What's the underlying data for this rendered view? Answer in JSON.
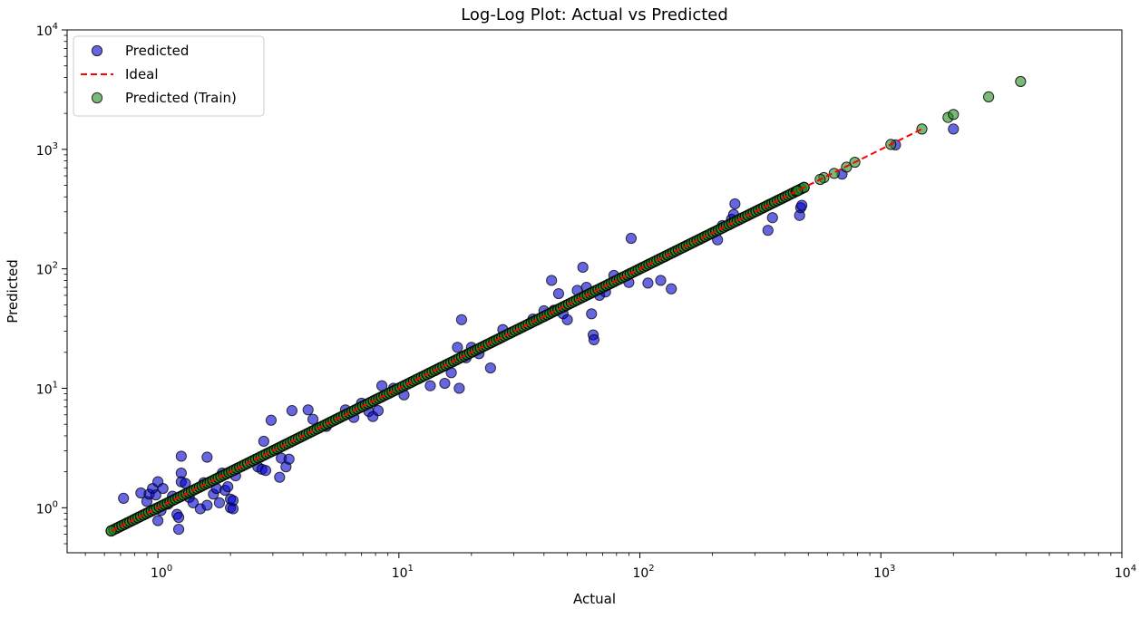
{
  "chart_data": {
    "type": "scatter",
    "title": "Log-Log Plot: Actual vs Predicted",
    "xlabel": "Actual",
    "ylabel": "Predicted",
    "xscale": "log",
    "yscale": "log",
    "xlim": [
      0.42,
      10000
    ],
    "ylim": [
      0.42,
      10000
    ],
    "grid": false,
    "legend_position": "top-left",
    "x_ticks": [
      {
        "value": 1,
        "base": "10",
        "exp": "0"
      },
      {
        "value": 10,
        "base": "10",
        "exp": "1"
      },
      {
        "value": 100,
        "base": "10",
        "exp": "2"
      },
      {
        "value": 1000,
        "base": "10",
        "exp": "3"
      },
      {
        "value": 10000,
        "base": "10",
        "exp": "4"
      }
    ],
    "y_ticks": [
      {
        "value": 1,
        "base": "10",
        "exp": "0"
      },
      {
        "value": 10,
        "base": "10",
        "exp": "1"
      },
      {
        "value": 100,
        "base": "10",
        "exp": "2"
      },
      {
        "value": 1000,
        "base": "10",
        "exp": "3"
      },
      {
        "value": 10000,
        "base": "10",
        "exp": "4"
      }
    ],
    "series": [
      {
        "name": "Predicted",
        "kind": "scatter",
        "color": "#0000cd",
        "alpha": 0.6,
        "points": [
          [
            0.72,
            1.2
          ],
          [
            0.85,
            1.33
          ],
          [
            0.9,
            1.13
          ],
          [
            0.92,
            1.3
          ],
          [
            0.95,
            1.45
          ],
          [
            0.98,
            1.28
          ],
          [
            1.0,
            1.65
          ],
          [
            1.0,
            0.78
          ],
          [
            1.03,
            0.95
          ],
          [
            1.05,
            1.45
          ],
          [
            1.1,
            1.07
          ],
          [
            1.15,
            1.25
          ],
          [
            1.2,
            0.88
          ],
          [
            1.22,
            0.83
          ],
          [
            1.22,
            0.66
          ],
          [
            1.25,
            2.7
          ],
          [
            1.25,
            1.95
          ],
          [
            1.25,
            1.65
          ],
          [
            1.3,
            1.6
          ],
          [
            1.35,
            1.22
          ],
          [
            1.4,
            1.1
          ],
          [
            1.5,
            0.98
          ],
          [
            1.55,
            1.62
          ],
          [
            1.6,
            2.65
          ],
          [
            1.6,
            1.05
          ],
          [
            1.7,
            1.3
          ],
          [
            1.75,
            1.45
          ],
          [
            1.8,
            1.1
          ],
          [
            1.85,
            1.95
          ],
          [
            1.9,
            1.4
          ],
          [
            1.95,
            1.5
          ],
          [
            2.0,
            1.18
          ],
          [
            2.0,
            1.0
          ],
          [
            2.05,
            0.98
          ],
          [
            2.05,
            1.15
          ],
          [
            2.1,
            1.85
          ],
          [
            2.6,
            2.2
          ],
          [
            2.7,
            2.1
          ],
          [
            2.75,
            3.6
          ],
          [
            2.8,
            2.05
          ],
          [
            2.95,
            5.4
          ],
          [
            3.2,
            1.8
          ],
          [
            3.25,
            2.6
          ],
          [
            3.4,
            2.2
          ],
          [
            3.5,
            2.55
          ],
          [
            3.6,
            6.5
          ],
          [
            4.2,
            6.6
          ],
          [
            4.4,
            5.5
          ],
          [
            5.0,
            4.8
          ],
          [
            6.0,
            6.6
          ],
          [
            6.5,
            5.7
          ],
          [
            7.0,
            7.5
          ],
          [
            7.5,
            6.4
          ],
          [
            7.8,
            5.8
          ],
          [
            8.2,
            6.5
          ],
          [
            8.5,
            10.5
          ],
          [
            9.5,
            10.0
          ],
          [
            10.5,
            8.8
          ],
          [
            13.5,
            10.5
          ],
          [
            15.5,
            11.0
          ],
          [
            16.5,
            13.5
          ],
          [
            17.5,
            22.0
          ],
          [
            17.8,
            10.0
          ],
          [
            18.2,
            37.5
          ],
          [
            19.0,
            18.0
          ],
          [
            20.0,
            22.0
          ],
          [
            21.5,
            19.5
          ],
          [
            24.0,
            14.8
          ],
          [
            27.0,
            31.0
          ],
          [
            36.0,
            38.0
          ],
          [
            40.0,
            44.5
          ],
          [
            43.0,
            80.0
          ],
          [
            44.0,
            45.0
          ],
          [
            46.0,
            62.0
          ],
          [
            48.0,
            42.0
          ],
          [
            50.0,
            37.5
          ],
          [
            55.0,
            66.0
          ],
          [
            58.0,
            103.0
          ],
          [
            60.0,
            70.0
          ],
          [
            63.0,
            42.0
          ],
          [
            64.0,
            28.0
          ],
          [
            64.5,
            25.5
          ],
          [
            68.0,
            60.0
          ],
          [
            72.0,
            64.0
          ],
          [
            78.0,
            88.0
          ],
          [
            90.0,
            77.0
          ],
          [
            92.0,
            180.0
          ],
          [
            108.0,
            76.0
          ],
          [
            122.0,
            80.0
          ],
          [
            135.0,
            68.0
          ],
          [
            210.0,
            175.0
          ],
          [
            220.0,
            230.0
          ],
          [
            240.0,
            260.0
          ],
          [
            245.0,
            285.0
          ],
          [
            248.0,
            350.0
          ],
          [
            340.0,
            210.0
          ],
          [
            355.0,
            268.0
          ],
          [
            460.0,
            280.0
          ],
          [
            465.0,
            325.0
          ],
          [
            470.0,
            340.0
          ],
          [
            690.0,
            620.0
          ],
          [
            1150.0,
            1090.0
          ],
          [
            2000.0,
            1480.0
          ]
        ]
      },
      {
        "name": "Ideal",
        "kind": "line",
        "color": "#ff0000",
        "dash": "dashed",
        "x": [
          0.64,
          1480
        ],
        "y": [
          0.64,
          1480
        ]
      },
      {
        "name": "Predicted (Train)",
        "kind": "scatter",
        "color": "#228b22",
        "alpha": 0.6,
        "points": [
          [
            0.64,
            0.64
          ],
          [
            1480,
            1480
          ],
          [
            1900,
            1850
          ],
          [
            2000,
            1960
          ],
          [
            2800,
            2750
          ],
          [
            3800,
            3700
          ],
          [
            1100,
            1100
          ],
          [
            780,
            780
          ],
          [
            720,
            710
          ],
          [
            640,
            630
          ],
          [
            580,
            580
          ],
          [
            560,
            560
          ],
          [
            480,
            480
          ],
          [
            450,
            450
          ]
        ],
        "dense_line_x_range": [
          0.64,
          480
        ]
      }
    ],
    "legend": [
      {
        "label": "Predicted",
        "marker": "circle",
        "color": "#0000cd"
      },
      {
        "label": "Ideal",
        "marker": "dashed-line",
        "color": "#ff0000"
      },
      {
        "label": "Predicted (Train)",
        "marker": "circle",
        "color": "#228b22"
      }
    ]
  }
}
